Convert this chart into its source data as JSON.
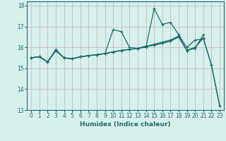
{
  "title": "",
  "xlabel": "Humidex (Indice chaleur)",
  "ylabel": "",
  "bg_color": "#d8f0ec",
  "grid_color": "#c8b8c0",
  "line_color": "#1a6e6e",
  "spine_color": "#1a6e6e",
  "xlim": [
    -0.5,
    23.5
  ],
  "ylim": [
    13,
    18.2
  ],
  "yticks": [
    13,
    14,
    15,
    16,
    17,
    18
  ],
  "xticks": [
    0,
    1,
    2,
    3,
    4,
    5,
    6,
    7,
    8,
    9,
    10,
    11,
    12,
    13,
    14,
    15,
    16,
    17,
    18,
    19,
    20,
    21,
    22,
    23
  ],
  "lines": [
    {
      "x": [
        0,
        1,
        2,
        3,
        4,
        5,
        6,
        7,
        8,
        9,
        10,
        11,
        12,
        13,
        14,
        15,
        16,
        17,
        18,
        19,
        20,
        21,
        22,
        23
      ],
      "y": [
        15.5,
        15.55,
        15.3,
        15.85,
        15.5,
        15.45,
        15.55,
        15.6,
        15.65,
        15.7,
        15.78,
        15.85,
        15.9,
        15.95,
        16.05,
        16.1,
        16.2,
        16.3,
        16.5,
        15.85,
        16.0,
        16.45,
        15.15,
        13.2
      ]
    },
    {
      "x": [
        0,
        1,
        2,
        3,
        4,
        5,
        6,
        7,
        8,
        9,
        10,
        11,
        12,
        13,
        14,
        15,
        16,
        17,
        18,
        19,
        20,
        21
      ],
      "y": [
        15.5,
        15.55,
        15.3,
        15.9,
        15.5,
        15.45,
        15.55,
        15.6,
        15.65,
        15.7,
        16.85,
        16.75,
        16.0,
        15.95,
        16.0,
        17.85,
        17.1,
        17.2,
        16.6,
        16.0,
        16.35,
        16.4
      ]
    },
    {
      "x": [
        0,
        1,
        2,
        3,
        4,
        5,
        6,
        7,
        8,
        9,
        10,
        11,
        12,
        13,
        14,
        15,
        16,
        17,
        18,
        19,
        20,
        21
      ],
      "y": [
        15.5,
        15.55,
        15.3,
        15.85,
        15.5,
        15.45,
        15.55,
        15.6,
        15.65,
        15.7,
        15.78,
        15.85,
        15.9,
        15.95,
        16.05,
        16.15,
        16.25,
        16.35,
        16.55,
        15.85,
        15.95,
        16.6
      ]
    },
    {
      "x": [
        0,
        1,
        2,
        3,
        4,
        5,
        6,
        7,
        8,
        9,
        10,
        11,
        12,
        13,
        14,
        15,
        16,
        17,
        18,
        19,
        20,
        21,
        22,
        23
      ],
      "y": [
        15.5,
        15.55,
        15.3,
        15.85,
        15.5,
        15.45,
        15.55,
        15.6,
        15.65,
        15.7,
        15.78,
        15.85,
        15.9,
        15.95,
        16.05,
        16.1,
        16.2,
        16.3,
        16.5,
        15.85,
        16.0,
        16.45,
        15.15,
        13.2
      ]
    }
  ],
  "marker": "+",
  "markersize": 3.5,
  "linewidth": 0.9,
  "tick_fontsize": 5.5,
  "xlabel_fontsize": 6.5
}
